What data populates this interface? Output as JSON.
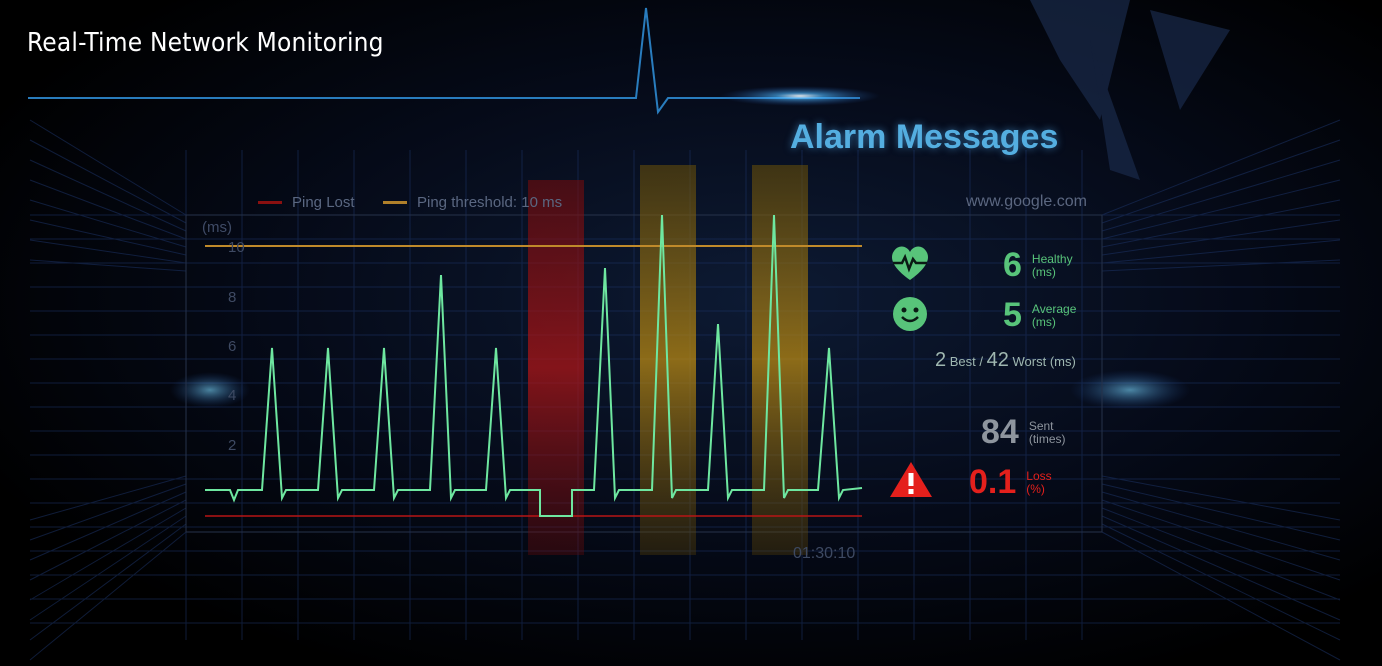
{
  "page": {
    "title": "Real-Time Network Monitoring"
  },
  "banner": {
    "title": "Alarm Messages"
  },
  "chart": {
    "legend": {
      "ping_lost": "Ping Lost",
      "ping_threshold": "Ping threshold: 10 ms"
    },
    "host": "www.google.com",
    "unit_label": "(ms)",
    "ticks": [
      "10",
      "8",
      "6",
      "4",
      "2"
    ],
    "time_label": "01:30:10"
  },
  "stats": {
    "healthy": {
      "value": "6",
      "label_line1": "Healthy",
      "label_line2": "(ms)"
    },
    "average": {
      "value": "5",
      "label_line1": "Average",
      "label_line2": "(ms)"
    },
    "best_worst": {
      "best": "2",
      "best_label": "Best /",
      "worst": "42",
      "worst_label": "Worst (ms)"
    },
    "sent": {
      "value": "84",
      "label_line1": "Sent",
      "label_line2": "(times)"
    },
    "loss": {
      "value": "0.1",
      "label_line1": "Loss",
      "label_line2": "(%)"
    }
  },
  "colors": {
    "pulse": "#6ee7a0",
    "threshold": "#c08a2a",
    "lost_bar": "#b81515",
    "spike_bar": "#c49010",
    "healthy": "#58c47a",
    "loss": "#e4201c",
    "accent": "#54aee0"
  },
  "icons": {
    "healthy": "heart-pulse-icon",
    "average": "smiley-icon",
    "loss": "warning-icon"
  }
}
